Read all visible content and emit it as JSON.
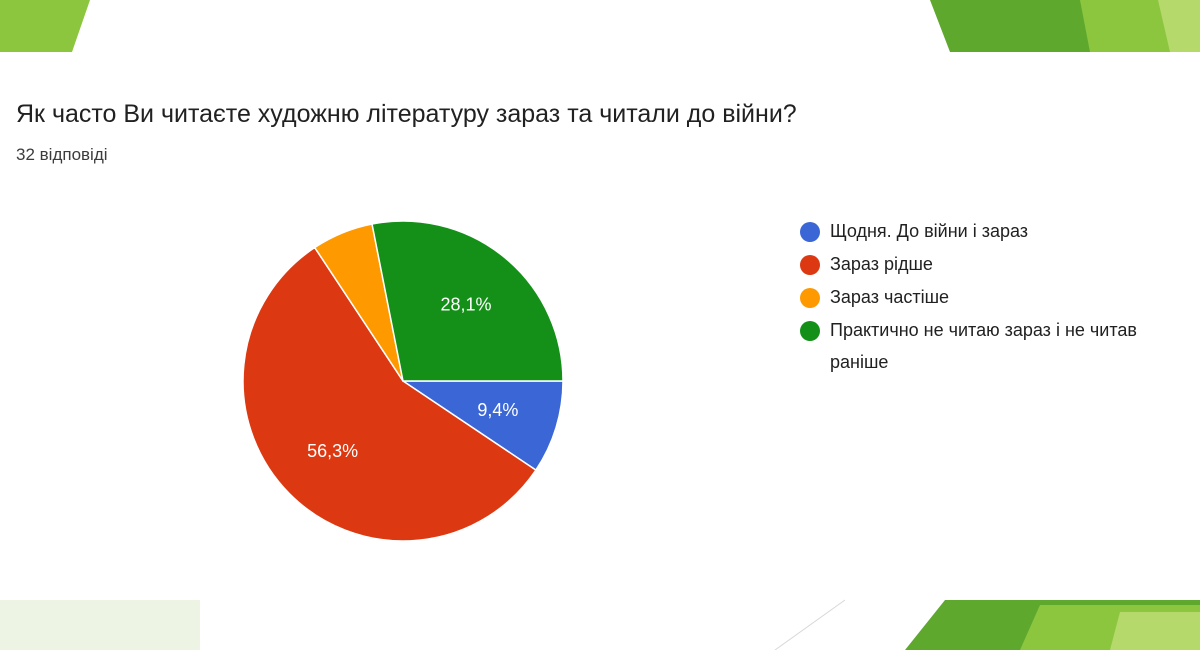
{
  "header": {
    "question": "Як часто Ви читаєте художню літературу зараз та читали до війни?",
    "responses": "32 відповіді"
  },
  "chart_data": {
    "type": "pie",
    "categories": [
      "Щодня. До війни і зараз",
      "Зараз рідше",
      "Зараз частіше",
      "Практично не читаю зараз і не читав раніше"
    ],
    "values": [
      9.4,
      56.3,
      6.2,
      28.1
    ],
    "labels": [
      "9,4%",
      "56,3%",
      "",
      "28,1%"
    ],
    "colors": [
      "#3b66d6",
      "#dc3912",
      "#ff9900",
      "#149018"
    ],
    "legend_lines": [
      [
        "Щодня. До війни і зараз"
      ],
      [
        "Зараз рідше"
      ],
      [
        "Зараз частіше"
      ],
      [
        "Практично не читаю зараз і не читав",
        "раніше"
      ]
    ],
    "legend_position": "right"
  },
  "decoration_colors": [
    "#8cc63f",
    "#5fa82e",
    "#b5d96b"
  ]
}
